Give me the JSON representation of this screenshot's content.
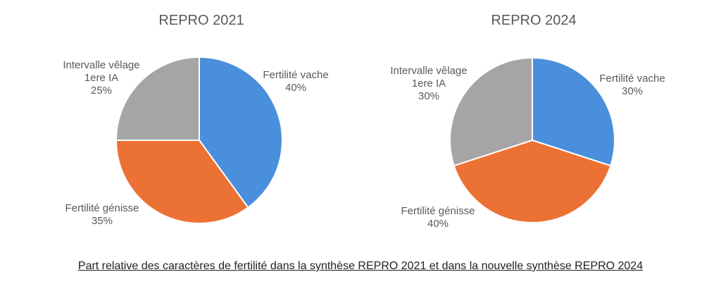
{
  "caption": "Part relative des caractères de fertilité dans la synthèse REPRO 2021 et dans la nouvelle synthèse REPRO 2024",
  "colors": {
    "fertilite_vache": "#4a8fdb",
    "fertilite_genisse": "#ec7134",
    "intervalle_velage": "#a5a5a5",
    "edge": "#ffffff"
  },
  "chart_data": [
    {
      "type": "pie",
      "title": "REPRO 2021",
      "slices": [
        {
          "label_lines": [
            "Fertilité vache",
            "40%"
          ],
          "value": 40,
          "color_key": "fertilite_vache"
        },
        {
          "label_lines": [
            "Fertilité génisse",
            "35%"
          ],
          "value": 35,
          "color_key": "fertilite_genisse"
        },
        {
          "label_lines": [
            "Intervalle vêlage",
            "1ere IA",
            "25%"
          ],
          "value": 25,
          "color_key": "intervalle_velage"
        }
      ]
    },
    {
      "type": "pie",
      "title": "REPRO 2024",
      "slices": [
        {
          "label_lines": [
            "Fertilité vache",
            "30%"
          ],
          "value": 30,
          "color_key": "fertilite_vache"
        },
        {
          "label_lines": [
            "Fertilité génisse",
            "40%"
          ],
          "value": 40,
          "color_key": "fertilite_genisse"
        },
        {
          "label_lines": [
            "Intervalle vêlage",
            "1ere IA",
            "30%"
          ],
          "value": 30,
          "color_key": "intervalle_velage"
        }
      ]
    }
  ]
}
